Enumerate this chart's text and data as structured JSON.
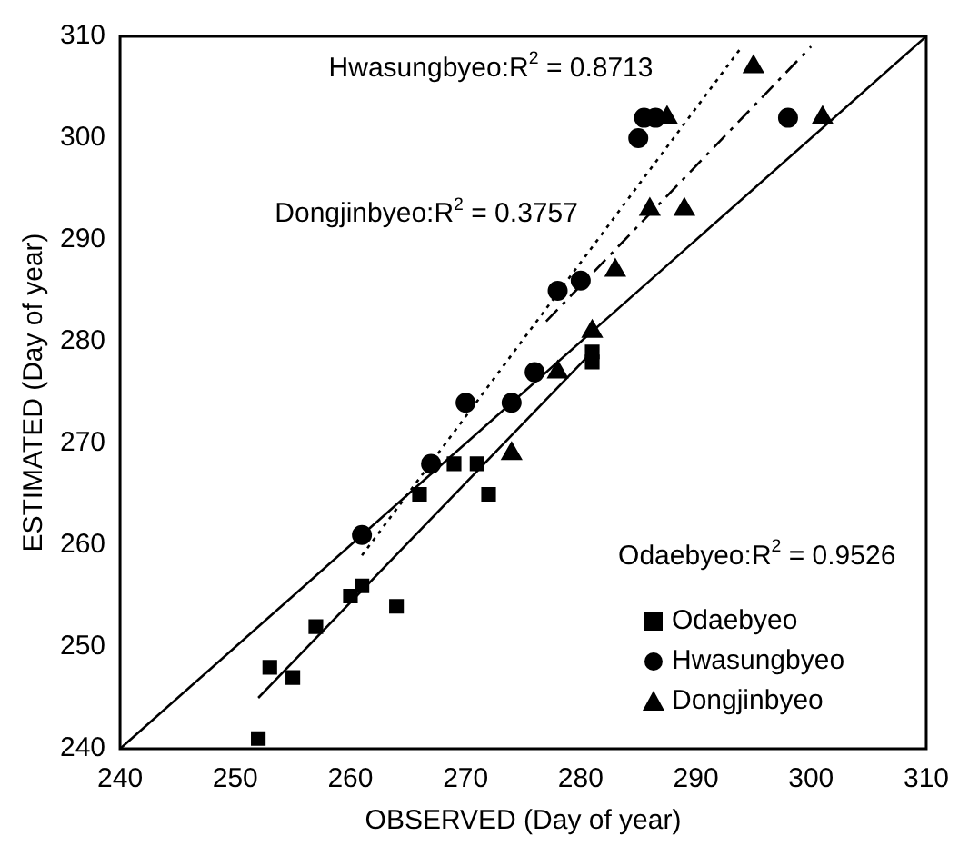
{
  "chart_data": {
    "type": "scatter",
    "xlabel": "OBSERVED (Day of year)",
    "ylabel": "ESTIMATED (Day of year)",
    "xlim": [
      240,
      310
    ],
    "ylim": [
      240,
      310
    ],
    "xticks": [
      240,
      250,
      260,
      270,
      280,
      290,
      300,
      310
    ],
    "yticks": [
      240,
      250,
      260,
      270,
      280,
      290,
      300,
      310
    ],
    "grid": false,
    "legend": "bottom right",
    "annotations": [
      "Hwasungbyeo:R$^{2}$ = 0.8713",
      "Dongjinbyeo:R$^{2}$ = 0.3757",
      "Odaebyeo:R$^{2}$ = 0.9526"
    ],
    "series": [
      {
        "name": "Odaebyeo",
        "marker": "square",
        "color": "#000000",
        "x": [
          252,
          253,
          255,
          257,
          260,
          261,
          264,
          266,
          269,
          271,
          272,
          281,
          281
        ],
        "values": [
          241,
          248,
          247,
          252,
          255,
          256,
          254,
          265,
          268,
          268,
          265,
          278,
          279
        ]
      },
      {
        "name": "Hwasungbyeo",
        "marker": "circle",
        "color": "#000000",
        "x": [
          261,
          267,
          270,
          274,
          276,
          278,
          280,
          285,
          285.5,
          286.5,
          298
        ],
        "values": [
          261,
          268,
          274,
          274,
          277,
          285,
          286,
          300,
          302,
          302,
          302
        ]
      },
      {
        "name": "Dongjinbyeo",
        "marker": "triangle",
        "color": "#000000",
        "x": [
          274,
          278,
          281,
          283,
          286,
          287.5,
          289,
          295,
          301
        ],
        "values": [
          269,
          277,
          281,
          287,
          293,
          302,
          293,
          307,
          302
        ]
      },
      {
        "type": "line",
        "marker": "none",
        "line_style": "solid",
        "color": "#000000",
        "x": [
          240,
          310
        ],
        "values": [
          240,
          310
        ]
      },
      {
        "type": "line",
        "marker": "none",
        "line_style": "solid",
        "color": "#000000",
        "x": [
          252,
          281
        ],
        "values": [
          245,
          279
        ]
      },
      {
        "type": "line",
        "marker": "none",
        "line_style": "dotted",
        "color": "#000000",
        "x": [
          261,
          294
        ],
        "values": [
          259,
          309
        ]
      },
      {
        "type": "line",
        "marker": "none",
        "line_style": "dashed",
        "color": "#000000",
        "x": [
          277,
          300
        ],
        "values": [
          282,
          309
        ]
      }
    ]
  }
}
